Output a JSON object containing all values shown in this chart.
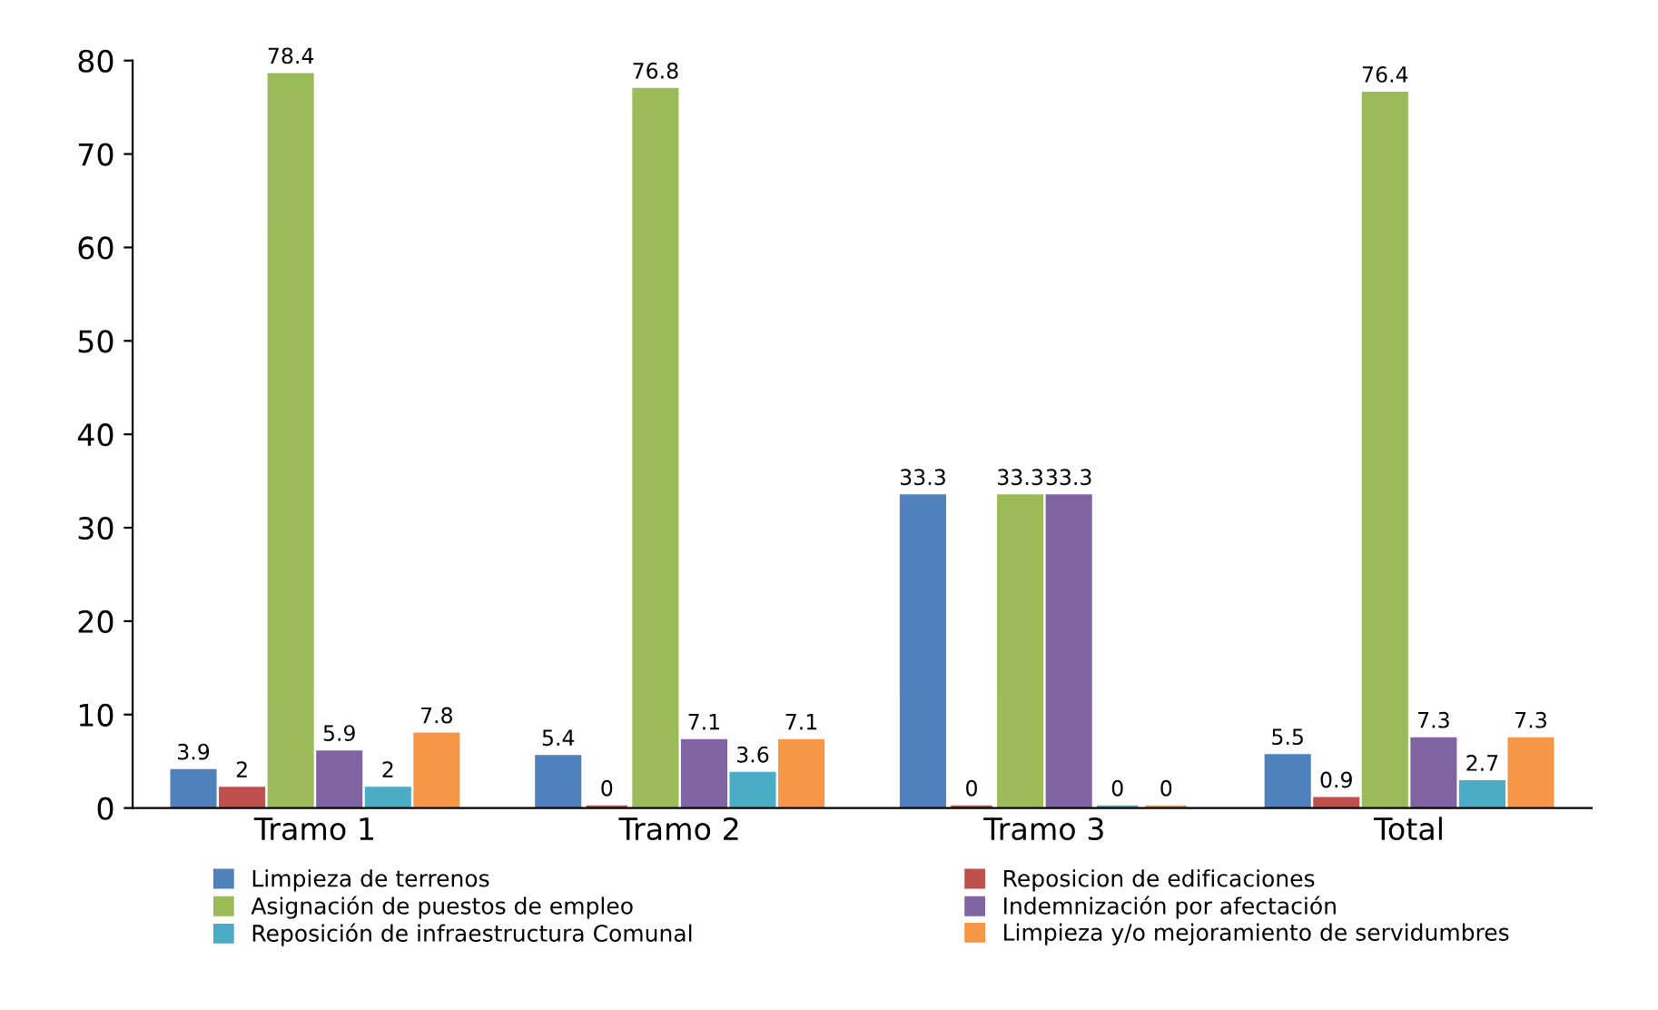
{
  "chart_data": {
    "type": "bar",
    "categories": [
      "Tramo 1",
      "Tramo 2",
      "Tramo 3",
      "Total"
    ],
    "series": [
      {
        "name": "Limpieza de terrenos",
        "color": "#4f81bd",
        "values": [
          3.9,
          5.4,
          33.3,
          5.5
        ]
      },
      {
        "name": "Reposicion de edificaciones",
        "color": "#c0504d",
        "values": [
          2,
          0,
          0,
          0.9
        ]
      },
      {
        "name": "Asignación de puestos de empleo",
        "color": "#9bbb59",
        "values": [
          78.4,
          76.8,
          33.3,
          76.4
        ]
      },
      {
        "name": "Indemnización por afectación",
        "color": "#8064a2",
        "values": [
          5.9,
          7.1,
          33.3,
          7.3
        ]
      },
      {
        "name": "Reposición de infraestructura Comunal",
        "color": "#4bacc6",
        "values": [
          2,
          3.6,
          0,
          2.7
        ]
      },
      {
        "name": "Limpieza y/o mejoramiento de servidumbres",
        "color": "#f79646",
        "values": [
          7.8,
          7.1,
          0,
          7.3
        ]
      }
    ],
    "ylim": [
      0,
      80
    ],
    "yticks": [
      0,
      10,
      20,
      30,
      40,
      50,
      60,
      70,
      80
    ],
    "data_labels": true,
    "legend": "bottom",
    "grid": false
  }
}
